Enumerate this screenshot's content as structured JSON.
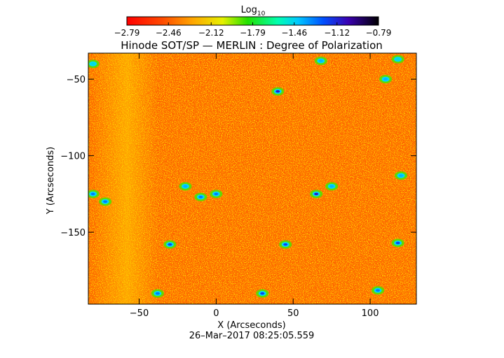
{
  "chart_data": {
    "type": "heatmap",
    "title": "Hinode SOT/SP — MERLIN : Degree of Polarization",
    "xlabel": "X (Arcseconds)",
    "ylabel": "Y (Arcseconds)",
    "footer": "26–Mar–2017  08:25:05.559",
    "xlim": [
      -83,
      130
    ],
    "ylim": [
      -197,
      -33
    ],
    "x_ticks": [
      -50,
      0,
      50,
      100
    ],
    "x_tick_labels": [
      "−50",
      "0",
      "50",
      "100"
    ],
    "y_ticks": [
      -50,
      -100,
      -150
    ],
    "y_tick_labels": [
      "−50",
      "−100",
      "−150"
    ],
    "grid": false,
    "colorbar": {
      "label_base": "Log",
      "label_sub": "10",
      "range": [
        -2.79,
        -0.79
      ],
      "ticks": [
        -2.79,
        -2.46,
        -2.12,
        -1.79,
        -1.46,
        -1.12,
        -0.79
      ],
      "tick_labels": [
        "−2.79",
        "−2.46",
        "−2.12",
        "−1.79",
        "−1.46",
        "−1.12",
        "−0.79"
      ],
      "colormap": "rainbow"
    },
    "features": [
      {
        "x": -80,
        "y": -125,
        "value": -1.3
      },
      {
        "x": -72,
        "y": -130,
        "value": -1.3
      },
      {
        "x": -30,
        "y": -158,
        "value": -1.2
      },
      {
        "x": -20,
        "y": -120,
        "value": -1.4
      },
      {
        "x": -10,
        "y": -127,
        "value": -1.3
      },
      {
        "x": 0,
        "y": -125,
        "value": -1.3
      },
      {
        "x": 40,
        "y": -58,
        "value": -1.1
      },
      {
        "x": 65,
        "y": -125,
        "value": -1.1
      },
      {
        "x": 75,
        "y": -120,
        "value": -1.4
      },
      {
        "x": 45,
        "y": -158,
        "value": -1.2
      },
      {
        "x": 30,
        "y": -190,
        "value": -1.2
      },
      {
        "x": -38,
        "y": -190,
        "value": -1.3
      },
      {
        "x": 105,
        "y": -188,
        "value": -1.3
      },
      {
        "x": 118,
        "y": -157,
        "value": -1.2
      },
      {
        "x": 120,
        "y": -113,
        "value": -1.4
      },
      {
        "x": 110,
        "y": -50,
        "value": -1.4
      },
      {
        "x": -80,
        "y": -40,
        "value": -1.5
      },
      {
        "x": 68,
        "y": -38,
        "value": -1.4
      },
      {
        "x": 118,
        "y": -37,
        "value": -1.5
      }
    ]
  }
}
